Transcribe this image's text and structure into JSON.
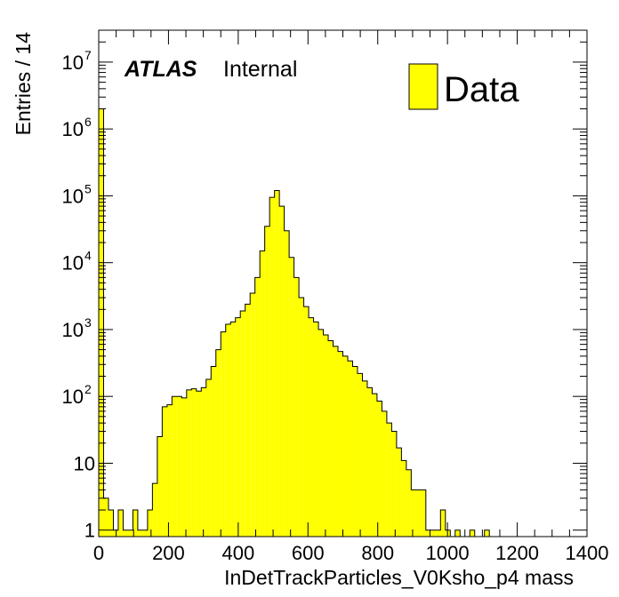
{
  "chart_data": {
    "type": "histogram",
    "xlabel": "InDetTrackParticles_V0Ksho_p4 mass",
    "ylabel": "Entries / 14",
    "xlim": [
      0,
      1400
    ],
    "ylim": [
      0.8,
      30000000
    ],
    "yscale": "log",
    "bin_width": 14,
    "x_ticks": [
      "0",
      "200",
      "400",
      "600",
      "800",
      "1000",
      "1200",
      "1400"
    ],
    "y_ticks": [
      {
        "value": 1,
        "base": "1",
        "exp": ""
      },
      {
        "value": 10,
        "base": "10",
        "exp": ""
      },
      {
        "value": 100,
        "base": "10",
        "exp": "2"
      },
      {
        "value": 1000,
        "base": "10",
        "exp": "3"
      },
      {
        "value": 10000,
        "base": "10",
        "exp": "4"
      },
      {
        "value": 100000,
        "base": "10",
        "exp": "5"
      },
      {
        "value": 1000000,
        "base": "10",
        "exp": "6"
      },
      {
        "value": 10000000,
        "base": "10",
        "exp": "7"
      }
    ],
    "series": [
      {
        "name": "Data",
        "color": "#ffff00",
        "edgecolor": "#000000",
        "bins": [
          [
            0,
            2000000
          ],
          [
            14,
            3
          ],
          [
            28,
            2
          ],
          [
            42,
            1
          ],
          [
            56,
            2
          ],
          [
            70,
            1
          ],
          [
            84,
            1
          ],
          [
            98,
            2
          ],
          [
            112,
            1
          ],
          [
            126,
            1
          ],
          [
            140,
            2
          ],
          [
            154,
            5
          ],
          [
            168,
            25
          ],
          [
            182,
            70
          ],
          [
            196,
            75
          ],
          [
            210,
            100
          ],
          [
            224,
            100
          ],
          [
            238,
            95
          ],
          [
            252,
            125
          ],
          [
            266,
            130
          ],
          [
            280,
            120
          ],
          [
            294,
            135
          ],
          [
            308,
            180
          ],
          [
            322,
            280
          ],
          [
            336,
            500
          ],
          [
            350,
            920
          ],
          [
            364,
            1200
          ],
          [
            378,
            1300
          ],
          [
            392,
            1500
          ],
          [
            406,
            1900
          ],
          [
            420,
            2400
          ],
          [
            434,
            3500
          ],
          [
            448,
            6000
          ],
          [
            462,
            15000
          ],
          [
            476,
            35000
          ],
          [
            490,
            95000
          ],
          [
            504,
            120000
          ],
          [
            518,
            70000
          ],
          [
            532,
            30000
          ],
          [
            546,
            12000
          ],
          [
            560,
            6000
          ],
          [
            574,
            3000
          ],
          [
            588,
            2200
          ],
          [
            602,
            1500
          ],
          [
            616,
            1300
          ],
          [
            630,
            1000
          ],
          [
            644,
            830
          ],
          [
            658,
            680
          ],
          [
            672,
            560
          ],
          [
            686,
            470
          ],
          [
            700,
            400
          ],
          [
            714,
            340
          ],
          [
            728,
            280
          ],
          [
            742,
            220
          ],
          [
            756,
            170
          ],
          [
            770,
            135
          ],
          [
            784,
            110
          ],
          [
            798,
            85
          ],
          [
            812,
            60
          ],
          [
            826,
            40
          ],
          [
            840,
            30
          ],
          [
            854,
            17
          ],
          [
            868,
            11
          ],
          [
            882,
            8
          ],
          [
            896,
            4
          ],
          [
            910,
            4
          ],
          [
            924,
            4
          ],
          [
            938,
            1
          ],
          [
            952,
            1
          ],
          [
            966,
            1
          ],
          [
            980,
            2
          ],
          [
            994,
            1
          ],
          [
            1008,
            0
          ],
          [
            1022,
            1
          ],
          [
            1036,
            0
          ],
          [
            1050,
            0
          ],
          [
            1064,
            1
          ],
          [
            1078,
            0
          ],
          [
            1092,
            0
          ],
          [
            1106,
            1
          ]
        ]
      }
    ],
    "annotations": [
      {
        "atlas": "ATLAS",
        "text": "Internal"
      }
    ],
    "legend": {
      "position": "top-right",
      "entries": [
        "Data"
      ]
    }
  }
}
